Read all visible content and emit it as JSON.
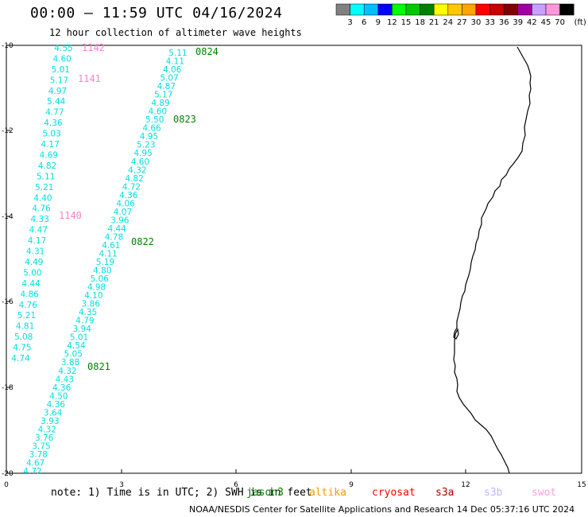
{
  "header": {
    "title": "00:00 – 11:59 UTC 04/16/2024",
    "subtitle": "12 hour collection of altimeter wave heights"
  },
  "colorbar": {
    "colors": [
      "#808080",
      "#00ffff",
      "#00bfff",
      "#0000ff",
      "#00ff00",
      "#00c800",
      "#008000",
      "#ffff00",
      "#ffc800",
      "#ffa500",
      "#ff0000",
      "#c80000",
      "#800000",
      "#a000a0",
      "#c8a0ff",
      "#ff96dc",
      "#000000"
    ],
    "labels": [
      "3",
      "6",
      "9",
      "12",
      "15",
      "18",
      "21",
      "24",
      "27",
      "30",
      "33",
      "36",
      "39",
      "42",
      "45",
      "70"
    ],
    "unit": "(ft)"
  },
  "axes": {
    "x_ticks": [
      "0",
      "3",
      "6",
      "9",
      "12",
      "15"
    ],
    "y_ticks": [
      "-10",
      "-12",
      "-14",
      "-16",
      "-18",
      "-20"
    ]
  },
  "tracks": [
    {
      "color": "#00e0e0",
      "values": [
        "4.55",
        "4.60",
        "5.01",
        "5.17",
        "4.97",
        "5.44",
        "4.77",
        "4.36",
        "5.03",
        "4.17",
        "4.69",
        "4.82",
        "5.11",
        "5.21",
        "4.40",
        "4.76",
        "4.33",
        "4.47",
        "4.17",
        "4.31",
        "4.49",
        "5.00",
        "4.44",
        "4.86",
        "4.76",
        "5.21",
        "4.81",
        "5.08",
        "4.75",
        "4.74"
      ]
    },
    {
      "color": "#00e0e0",
      "values": [
        "5.11",
        "4.11",
        "4.06",
        "5.07",
        "4.87",
        "5.17",
        "4.89",
        "4.60",
        "5.50",
        "4.66",
        "4.95",
        "5.23",
        "4.95",
        "4.60",
        "4.32",
        "4.82",
        "4.72",
        "4.36",
        "4.06",
        "4.07",
        "3.96",
        "4.44",
        "4.78",
        "4.61",
        "4.11",
        "5.19",
        "4.80",
        "5.06",
        "4.98",
        "4.10",
        "3.86",
        "4.35",
        "4.79",
        "3.94",
        "5.01",
        "4.54",
        "5.05",
        "3.88",
        "4.32",
        "4.43",
        "4.36",
        "4.50",
        "4.36",
        "3.64",
        "3.93",
        "4.32",
        "3.76",
        "3.75",
        "3.78",
        "4.67",
        "4.72"
      ]
    }
  ],
  "times": [
    {
      "label": "1142",
      "color": "#ff80c8"
    },
    {
      "label": "1141",
      "color": "#ff80c8"
    },
    {
      "label": "1140",
      "color": "#ff80c8"
    },
    {
      "label": "0824",
      "color": "#008000"
    },
    {
      "label": "0823",
      "color": "#008000"
    },
    {
      "label": "0822",
      "color": "#008000"
    },
    {
      "label": "0821",
      "color": "#008000"
    }
  ],
  "note": "note: 1) Time is in UTC; 2) SWH is in feet",
  "satellites": [
    {
      "name": "jason3",
      "color": "#008000"
    },
    {
      "name": "altika",
      "color": "#ff9900"
    },
    {
      "name": "cryosat",
      "color": "#ff0000"
    },
    {
      "name": "s3a",
      "color": "#b00000"
    },
    {
      "name": "s3b",
      "color": "#c8b0ff"
    },
    {
      "name": "swot",
      "color": "#ffa0dc"
    }
  ],
  "footer": "NOAA/NESDIS Center for Satellite Applications and Research   14 Dec 05:37:16 UTC 2024"
}
